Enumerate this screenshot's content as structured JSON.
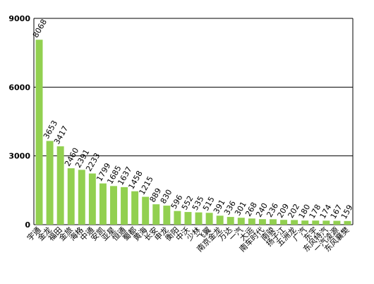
{
  "chart_data": {
    "type": "bar",
    "categories": [
      "宇通",
      "金龙",
      "福田",
      "金旅",
      "海格",
      "中通",
      "安凯",
      "亚星",
      "恒通",
      "蜀都",
      "黄海",
      "长安",
      "申龙",
      "衡阳",
      "中沃",
      "少林",
      "飞翼",
      "南京金龙",
      "万达",
      "一汽",
      "大运",
      "南车时代",
      "南骏",
      "扬子江",
      "五洲龙",
      "广汽",
      "东宇",
      "东风特汽",
      "一汽凌源",
      "东风襄樊"
    ],
    "values": [
      8068,
      3653,
      3417,
      2460,
      2391,
      2233,
      1799,
      1685,
      1637,
      1458,
      1215,
      889,
      830,
      596,
      552,
      535,
      515,
      391,
      336,
      301,
      268,
      240,
      236,
      209,
      202,
      180,
      178,
      174,
      167,
      159
    ],
    "color": "#92d050",
    "ylim": [
      0,
      9000
    ],
    "yticks": [
      0,
      3000,
      6000,
      9000
    ],
    "grid": true
  }
}
